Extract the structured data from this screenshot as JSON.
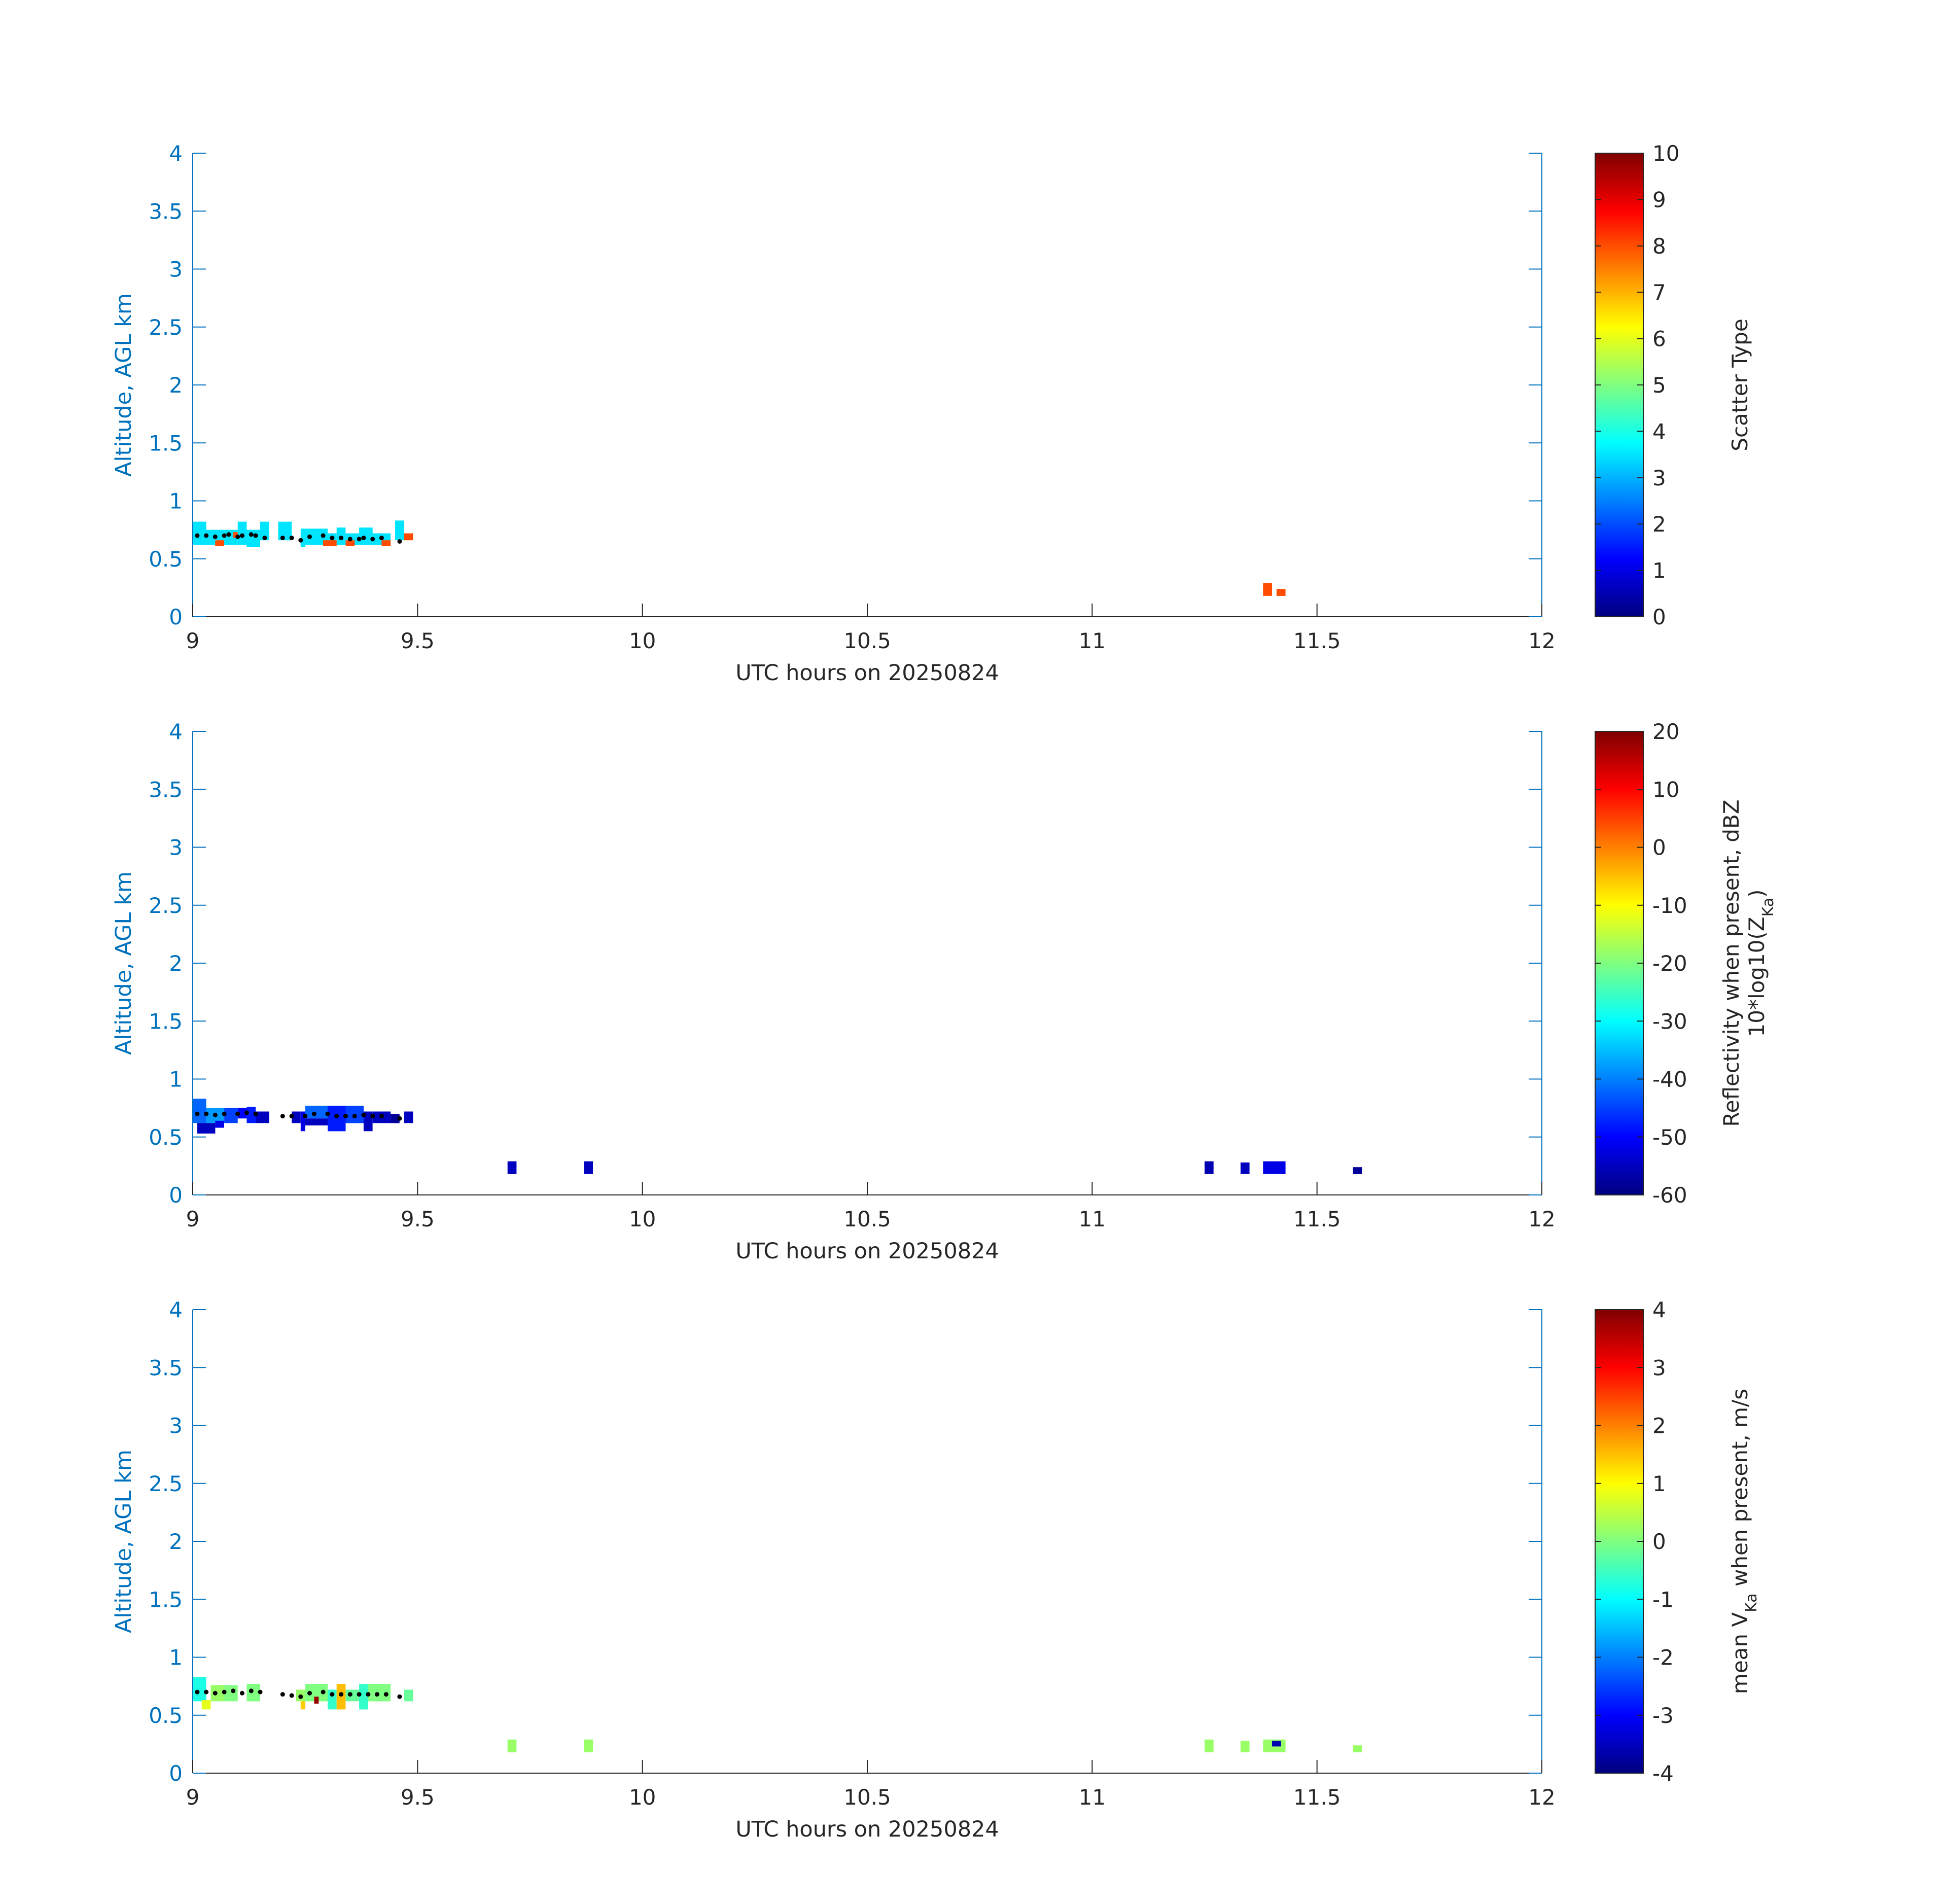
{
  "chart_data": [
    {
      "type": "heatmap",
      "xlabel": "UTC hours on 20250824",
      "ylabel": "Altitude, AGL km",
      "xlim": [
        9,
        12
      ],
      "ylim": [
        0,
        4
      ],
      "xticks": [
        "9",
        "9.5",
        "10",
        "10.5",
        "11",
        "11.5",
        "12"
      ],
      "yticks": [
        "0",
        "0.5",
        "1",
        "1.5",
        "2",
        "2.5",
        "3",
        "3.5",
        "4"
      ],
      "colorbar": {
        "label": "Scatter Type",
        "label2": "",
        "range": [
          0,
          10
        ],
        "ticks": [
          "0",
          "1",
          "2",
          "3",
          "4",
          "5",
          "6",
          "7",
          "8",
          "9",
          "10"
        ]
      },
      "cells": [
        [
          9.0,
          9.03,
          0.62,
          0.82,
          3.5
        ],
        [
          9.03,
          9.07,
          0.62,
          0.75,
          3.5
        ],
        [
          9.07,
          9.1,
          0.62,
          0.75,
          3.5
        ],
        [
          9.1,
          9.12,
          0.62,
          0.82,
          3.5
        ],
        [
          9.12,
          9.15,
          0.6,
          0.75,
          3.5
        ],
        [
          9.15,
          9.17,
          0.66,
          0.82,
          3.5
        ],
        [
          9.19,
          9.22,
          0.66,
          0.82,
          3.5
        ],
        [
          9.24,
          9.3,
          0.62,
          0.76,
          3.5
        ],
        [
          9.3,
          9.32,
          0.62,
          0.72,
          3.5
        ],
        [
          9.32,
          9.34,
          0.62,
          0.77,
          3.5
        ],
        [
          9.34,
          9.37,
          0.62,
          0.72,
          3.5
        ],
        [
          9.37,
          9.4,
          0.62,
          0.77,
          3.5
        ],
        [
          9.4,
          9.44,
          0.62,
          0.72,
          3.5
        ],
        [
          9.45,
          9.47,
          0.66,
          0.83,
          3.5
        ],
        [
          9.24,
          9.25,
          0.6,
          0.66,
          3.5
        ],
        [
          9.05,
          9.07,
          0.61,
          0.66,
          8.0
        ],
        [
          9.09,
          9.1,
          0.68,
          0.73,
          8.0
        ],
        [
          9.29,
          9.32,
          0.61,
          0.66,
          8.0
        ],
        [
          9.34,
          9.36,
          0.61,
          0.66,
          8.0
        ],
        [
          9.42,
          9.44,
          0.61,
          0.66,
          8.0
        ],
        [
          9.47,
          9.49,
          0.66,
          0.72,
          8.0
        ],
        [
          11.38,
          11.4,
          0.18,
          0.29,
          8.0
        ],
        [
          11.41,
          11.43,
          0.18,
          0.24,
          8.0
        ]
      ],
      "dots": [
        [
          9.01,
          0.7
        ],
        [
          9.03,
          0.7
        ],
        [
          9.05,
          0.69
        ],
        [
          9.07,
          0.7
        ],
        [
          9.08,
          0.71
        ],
        [
          9.1,
          0.69
        ],
        [
          9.11,
          0.7
        ],
        [
          9.13,
          0.71
        ],
        [
          9.14,
          0.7
        ],
        [
          9.16,
          0.68
        ],
        [
          9.2,
          0.68
        ],
        [
          9.22,
          0.68
        ],
        [
          9.24,
          0.66
        ],
        [
          9.26,
          0.69
        ],
        [
          9.29,
          0.7
        ],
        [
          9.31,
          0.68
        ],
        [
          9.33,
          0.68
        ],
        [
          9.35,
          0.67
        ],
        [
          9.37,
          0.67
        ],
        [
          9.38,
          0.68
        ],
        [
          9.4,
          0.67
        ],
        [
          9.42,
          0.68
        ],
        [
          9.46,
          0.65
        ]
      ]
    },
    {
      "type": "heatmap",
      "xlabel": "UTC hours on 20250824",
      "ylabel": "Altitude, AGL km",
      "xlim": [
        9,
        12
      ],
      "ylim": [
        0,
        4
      ],
      "xticks": [
        "9",
        "9.5",
        "10",
        "10.5",
        "11",
        "11.5",
        "12"
      ],
      "yticks": [
        "0",
        "0.5",
        "1",
        "1.5",
        "2",
        "2.5",
        "3",
        "3.5",
        "4"
      ],
      "colorbar": {
        "label": "Reflectivity when present, dBZ",
        "label2": "10*log10(Z",
        "label2_sub": "Ka",
        "label2_end": ")",
        "range": [
          -60,
          20
        ],
        "ticks": [
          "-60",
          "-50",
          "-40",
          "-30",
          "-20",
          "-10",
          "0",
          "10",
          "20"
        ]
      },
      "cells": [
        [
          9.0,
          9.03,
          0.62,
          0.83,
          -42
        ],
        [
          9.03,
          9.07,
          0.62,
          0.75,
          -38
        ],
        [
          9.07,
          9.1,
          0.62,
          0.75,
          -45
        ],
        [
          9.01,
          9.05,
          0.53,
          0.62,
          -55
        ],
        [
          9.05,
          9.07,
          0.58,
          0.64,
          -52
        ],
        [
          9.1,
          9.12,
          0.66,
          0.75,
          -50
        ],
        [
          9.12,
          9.14,
          0.62,
          0.76,
          -48
        ],
        [
          9.14,
          9.17,
          0.62,
          0.72,
          -55
        ],
        [
          9.22,
          9.24,
          0.62,
          0.72,
          -55
        ],
        [
          9.24,
          9.25,
          0.55,
          0.72,
          -52
        ],
        [
          9.25,
          9.3,
          0.66,
          0.77,
          -42
        ],
        [
          9.25,
          9.3,
          0.6,
          0.66,
          -55
        ],
        [
          9.3,
          9.34,
          0.55,
          0.77,
          -48
        ],
        [
          9.34,
          9.38,
          0.62,
          0.77,
          -45
        ],
        [
          9.38,
          9.4,
          0.55,
          0.72,
          -55
        ],
        [
          9.4,
          9.44,
          0.62,
          0.72,
          -55
        ],
        [
          9.44,
          9.46,
          0.62,
          0.7,
          -58
        ],
        [
          9.47,
          9.49,
          0.62,
          0.72,
          -55
        ],
        [
          9.7,
          9.72,
          0.18,
          0.29,
          -55
        ],
        [
          9.87,
          9.89,
          0.18,
          0.29,
          -55
        ],
        [
          11.25,
          11.27,
          0.18,
          0.29,
          -56
        ],
        [
          11.33,
          11.35,
          0.18,
          0.28,
          -55
        ],
        [
          11.38,
          11.43,
          0.18,
          0.29,
          -52
        ],
        [
          11.58,
          11.6,
          0.18,
          0.24,
          -58
        ]
      ],
      "dots": [
        [
          9.01,
          0.7
        ],
        [
          9.03,
          0.7
        ],
        [
          9.05,
          0.69
        ],
        [
          9.07,
          0.7
        ],
        [
          9.1,
          0.7
        ],
        [
          9.12,
          0.71
        ],
        [
          9.14,
          0.7
        ],
        [
          9.2,
          0.68
        ],
        [
          9.22,
          0.68
        ],
        [
          9.25,
          0.68
        ],
        [
          9.27,
          0.7
        ],
        [
          9.3,
          0.7
        ],
        [
          9.32,
          0.68
        ],
        [
          9.34,
          0.68
        ],
        [
          9.36,
          0.68
        ],
        [
          9.38,
          0.69
        ],
        [
          9.4,
          0.68
        ],
        [
          9.42,
          0.68
        ],
        [
          9.46,
          0.66
        ]
      ]
    },
    {
      "type": "heatmap",
      "xlabel": "UTC hours on 20250824",
      "ylabel": "Altitude, AGL km",
      "xlim": [
        9,
        12
      ],
      "ylim": [
        0,
        4
      ],
      "xticks": [
        "9",
        "9.5",
        "10",
        "10.5",
        "11",
        "11.5",
        "12"
      ],
      "yticks": [
        "0",
        "0.5",
        "1",
        "1.5",
        "2",
        "2.5",
        "3",
        "3.5",
        "4"
      ],
      "colorbar": {
        "label": "mean V",
        "label_sub": "Ka",
        "label_end": " when present, m/s",
        "label2": "",
        "range": [
          -4,
          4
        ],
        "ticks": [
          "-4",
          "-3",
          "-2",
          "-1",
          "0",
          "1",
          "2",
          "3",
          "4"
        ]
      },
      "cells": [
        [
          9.0,
          9.03,
          0.62,
          0.83,
          -0.8
        ],
        [
          9.02,
          9.04,
          0.55,
          0.63,
          0.8
        ],
        [
          9.04,
          9.07,
          0.62,
          0.76,
          0.2
        ],
        [
          9.07,
          9.1,
          0.62,
          0.76,
          0.0
        ],
        [
          9.12,
          9.15,
          0.62,
          0.77,
          0.0
        ],
        [
          9.23,
          9.25,
          0.62,
          0.72,
          0.2
        ],
        [
          9.24,
          9.25,
          0.55,
          0.62,
          1.4
        ],
        [
          9.25,
          9.3,
          0.62,
          0.77,
          0.0
        ],
        [
          9.27,
          9.28,
          0.6,
          0.66,
          3.8
        ],
        [
          9.3,
          9.32,
          0.55,
          0.72,
          -0.6
        ],
        [
          9.32,
          9.34,
          0.55,
          0.77,
          1.5
        ],
        [
          9.34,
          9.37,
          0.62,
          0.72,
          -0.2
        ],
        [
          9.37,
          9.39,
          0.55,
          0.77,
          -0.6
        ],
        [
          9.39,
          9.44,
          0.62,
          0.77,
          0.0
        ],
        [
          9.47,
          9.49,
          0.62,
          0.72,
          -0.2
        ],
        [
          9.7,
          9.72,
          0.18,
          0.29,
          0.2
        ],
        [
          9.87,
          9.89,
          0.18,
          0.29,
          0.2
        ],
        [
          11.25,
          11.27,
          0.18,
          0.29,
          0.2
        ],
        [
          11.33,
          11.35,
          0.18,
          0.28,
          0.2
        ],
        [
          11.38,
          11.43,
          0.18,
          0.29,
          0.2
        ],
        [
          11.4,
          11.42,
          0.23,
          0.28,
          -3.6
        ],
        [
          11.58,
          11.6,
          0.18,
          0.24,
          0.2
        ]
      ],
      "dots": [
        [
          9.01,
          0.7
        ],
        [
          9.03,
          0.7
        ],
        [
          9.05,
          0.69
        ],
        [
          9.07,
          0.7
        ],
        [
          9.09,
          0.71
        ],
        [
          9.11,
          0.69
        ],
        [
          9.13,
          0.71
        ],
        [
          9.15,
          0.7
        ],
        [
          9.2,
          0.68
        ],
        [
          9.22,
          0.67
        ],
        [
          9.24,
          0.66
        ],
        [
          9.26,
          0.69
        ],
        [
          9.29,
          0.7
        ],
        [
          9.31,
          0.68
        ],
        [
          9.33,
          0.68
        ],
        [
          9.35,
          0.68
        ],
        [
          9.37,
          0.68
        ],
        [
          9.39,
          0.68
        ],
        [
          9.41,
          0.68
        ],
        [
          9.43,
          0.68
        ],
        [
          9.46,
          0.66
        ]
      ]
    }
  ]
}
